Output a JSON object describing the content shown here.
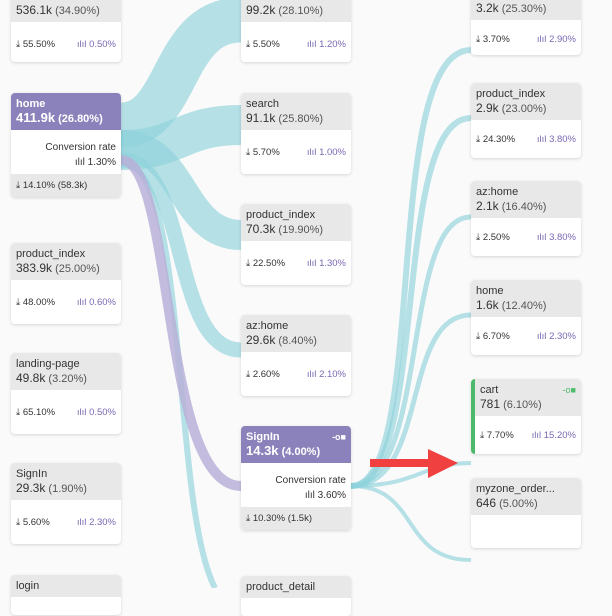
{
  "col1": [
    {
      "value": "536.1k",
      "pct": "(34.90%)",
      "drop": "55.50%",
      "conv": "0.50%"
    },
    {
      "name": "home",
      "value": "411.9k",
      "pct": "(26.80%)",
      "conv_label": "Conversion rate",
      "conv": "1.30%",
      "drop": "14.10% (58.3k)"
    },
    {
      "name": "product_index",
      "value": "383.9k",
      "pct": "(25.00%)",
      "drop": "48.00%",
      "conv": "0.60%"
    },
    {
      "name": "landing-page",
      "value": "49.8k",
      "pct": "(3.20%)",
      "drop": "65.10%",
      "conv": "0.50%"
    },
    {
      "name": "SignIn",
      "value": "29.3k",
      "pct": "(1.90%)",
      "drop": "5.60%",
      "conv": "2.30%"
    },
    {
      "name": "login"
    }
  ],
  "col2": [
    {
      "value": "99.2k",
      "pct": "(28.10%)",
      "drop": "5.50%",
      "conv": "1.20%"
    },
    {
      "name": "search",
      "value": "91.1k",
      "pct": "(25.80%)",
      "drop": "5.70%",
      "conv": "1.00%"
    },
    {
      "name": "product_index",
      "value": "70.3k",
      "pct": "(19.90%)",
      "drop": "22.50%",
      "conv": "1.30%"
    },
    {
      "name": "az:home",
      "value": "29.6k",
      "pct": "(8.40%)",
      "drop": "2.60%",
      "conv": "2.10%"
    },
    {
      "name": "SignIn",
      "value": "14.3k",
      "pct": "(4.00%)",
      "conv_label": "Conversion rate",
      "conv": "3.60%",
      "drop": "10.30% (1.5k)"
    },
    {
      "name": "product_detail"
    }
  ],
  "col3": [
    {
      "value": "3.2k",
      "pct": "(25.30%)",
      "drop": "3.70%",
      "conv": "2.90%"
    },
    {
      "name": "product_index",
      "value": "2.9k",
      "pct": "(23.00%)",
      "drop": "24.30%",
      "conv": "3.80%"
    },
    {
      "name": "az:home",
      "value": "2.1k",
      "pct": "(16.40%)",
      "drop": "2.50%",
      "conv": "3.80%"
    },
    {
      "name": "home",
      "value": "1.6k",
      "pct": "(12.40%)",
      "drop": "6.70%",
      "conv": "2.30%"
    },
    {
      "name": "cart",
      "value": "781",
      "pct": "(6.10%)",
      "drop": "7.70%",
      "conv": "15.20%"
    },
    {
      "name": "myzone_order...",
      "value": "646",
      "pct": "(5.00%)"
    }
  ],
  "icons": {
    "dropoff": "⤓",
    "conversion": "📊",
    "pin": "-o■"
  },
  "colors": {
    "flow": "#8fd3dc",
    "selected": "#8c82bb",
    "selected_flow": "#b8b0d8",
    "goal": "#4cba6a",
    "arrow": "#f04040"
  }
}
